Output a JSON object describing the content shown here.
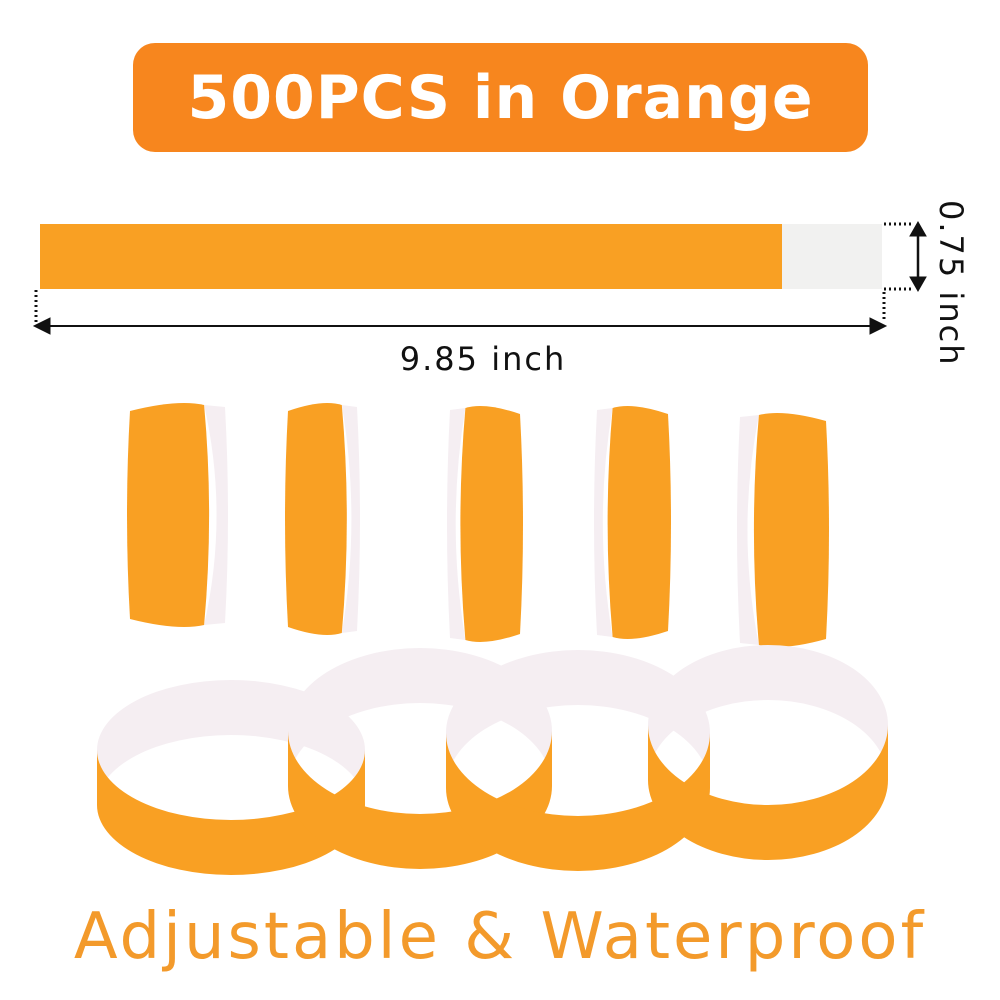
{
  "banner": {
    "text": "500PCS in Orange"
  },
  "dimensions": {
    "length": "9.85 inch",
    "width": "0.75 inch"
  },
  "tagline": "Adjustable & Waterproof",
  "colors": {
    "banner": "#f7861e",
    "band": "#f9a023",
    "band_inner": "#f5eef2",
    "tab": "#f1f1f0",
    "tagline": "#f39a2b",
    "dimension_lines": "#111111"
  }
}
